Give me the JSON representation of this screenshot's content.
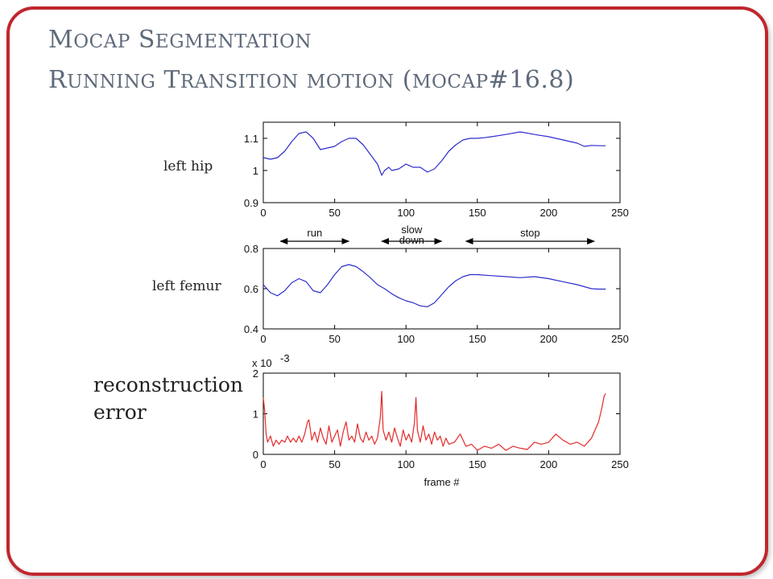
{
  "slide": {
    "title_line1": "Mocap Segmentation",
    "title_line2": "Running Transition motion (mocap#16.8)"
  },
  "labels": {
    "hip": "left hip",
    "femur": "left femur",
    "reconstruction": "reconstruction error"
  },
  "segments": [
    {
      "label": "run",
      "from": 12,
      "to": 60
    },
    {
      "label": "slow\ndown",
      "from": 83,
      "to": 125
    },
    {
      "label": "stop",
      "from": 142,
      "to": 232
    }
  ],
  "chart_data": [
    {
      "type": "line",
      "name": "left hip",
      "color": "#2d2dcc",
      "xlim": [
        0,
        250
      ],
      "ylim": [
        0.9,
        1.15
      ],
      "xticks": [
        0,
        50,
        100,
        150,
        200,
        250
      ],
      "yticks": [
        0.9,
        1,
        1.1
      ],
      "ytick_labels": [
        "0.9",
        "1",
        "1.1"
      ],
      "x": [
        0,
        5,
        10,
        15,
        20,
        25,
        30,
        35,
        40,
        45,
        50,
        55,
        60,
        65,
        70,
        75,
        80,
        83,
        85,
        88,
        90,
        95,
        100,
        105,
        110,
        115,
        120,
        125,
        130,
        135,
        140,
        145,
        150,
        155,
        160,
        170,
        180,
        190,
        200,
        210,
        220,
        225,
        230,
        235,
        240
      ],
      "values": [
        1.04,
        1.035,
        1.04,
        1.06,
        1.09,
        1.115,
        1.12,
        1.1,
        1.065,
        1.07,
        1.075,
        1.09,
        1.1,
        1.1,
        1.08,
        1.05,
        1.02,
        0.985,
        1.0,
        1.01,
        1.0,
        1.005,
        1.02,
        1.01,
        1.01,
        0.995,
        1.005,
        1.03,
        1.06,
        1.08,
        1.095,
        1.1,
        1.1,
        1.102,
        1.105,
        1.112,
        1.12,
        1.112,
        1.105,
        1.095,
        1.085,
        1.075,
        1.078,
        1.077,
        1.077
      ]
    },
    {
      "type": "line",
      "name": "left femur",
      "color": "#2d2dcc",
      "xlim": [
        0,
        250
      ],
      "ylim": [
        0.4,
        0.8
      ],
      "xticks": [
        0,
        50,
        100,
        150,
        200,
        250
      ],
      "yticks": [
        0.4,
        0.6,
        0.8
      ],
      "ytick_labels": [
        "0.4",
        "0.6",
        "0.8"
      ],
      "x": [
        0,
        5,
        10,
        15,
        20,
        25,
        30,
        35,
        40,
        45,
        50,
        55,
        60,
        65,
        70,
        75,
        80,
        85,
        90,
        95,
        100,
        105,
        110,
        115,
        120,
        125,
        130,
        135,
        140,
        145,
        150,
        160,
        170,
        180,
        190,
        200,
        210,
        220,
        225,
        230,
        235,
        240
      ],
      "values": [
        0.62,
        0.58,
        0.565,
        0.59,
        0.63,
        0.65,
        0.635,
        0.59,
        0.58,
        0.62,
        0.67,
        0.71,
        0.72,
        0.71,
        0.685,
        0.655,
        0.62,
        0.6,
        0.575,
        0.555,
        0.54,
        0.53,
        0.515,
        0.51,
        0.53,
        0.57,
        0.61,
        0.64,
        0.66,
        0.67,
        0.67,
        0.665,
        0.66,
        0.655,
        0.66,
        0.65,
        0.635,
        0.62,
        0.61,
        0.6,
        0.598,
        0.598
      ]
    },
    {
      "type": "line",
      "name": "reconstruction error",
      "color": "#e52a2a",
      "xlim": [
        0,
        250
      ],
      "ylim": [
        0,
        2
      ],
      "scale_label": "x 10",
      "scale_exp": "-3",
      "xlabel": "frame #",
      "xticks": [
        0,
        50,
        100,
        150,
        200,
        250
      ],
      "yticks": [
        0,
        1,
        2
      ],
      "ytick_labels": [
        "0",
        "1",
        "2"
      ],
      "x": [
        0,
        1,
        2,
        3,
        5,
        7,
        9,
        11,
        13,
        15,
        17,
        19,
        21,
        23,
        25,
        27,
        29,
        31,
        32,
        34,
        36,
        38,
        40,
        42,
        44,
        46,
        48,
        50,
        52,
        54,
        56,
        58,
        60,
        62,
        64,
        66,
        68,
        70,
        72,
        74,
        76,
        78,
        80,
        82,
        83,
        84,
        86,
        88,
        90,
        92,
        94,
        96,
        98,
        100,
        102,
        104,
        106,
        107,
        108,
        110,
        112,
        114,
        116,
        118,
        120,
        122,
        124,
        126,
        128,
        130,
        134,
        138,
        142,
        146,
        150,
        155,
        160,
        165,
        170,
        175,
        180,
        185,
        190,
        195,
        200,
        205,
        210,
        215,
        220,
        225,
        230,
        235,
        237,
        239,
        240
      ],
      "values": [
        1.4,
        1.05,
        0.5,
        0.3,
        0.45,
        0.2,
        0.35,
        0.25,
        0.35,
        0.3,
        0.45,
        0.3,
        0.4,
        0.3,
        0.45,
        0.3,
        0.5,
        0.8,
        0.85,
        0.35,
        0.55,
        0.3,
        0.65,
        0.4,
        0.25,
        0.7,
        0.3,
        0.45,
        0.6,
        0.2,
        0.55,
        0.8,
        0.35,
        0.45,
        0.3,
        0.75,
        0.4,
        0.3,
        0.55,
        0.35,
        0.45,
        0.25,
        0.4,
        0.9,
        1.55,
        0.6,
        0.35,
        0.55,
        0.3,
        0.65,
        0.4,
        0.2,
        0.6,
        0.35,
        0.5,
        0.3,
        0.8,
        1.4,
        0.6,
        0.3,
        0.7,
        0.35,
        0.5,
        0.25,
        0.55,
        0.35,
        0.45,
        0.2,
        0.4,
        0.25,
        0.3,
        0.5,
        0.2,
        0.25,
        0.1,
        0.2,
        0.15,
        0.25,
        0.1,
        0.2,
        0.15,
        0.12,
        0.3,
        0.25,
        0.3,
        0.5,
        0.35,
        0.25,
        0.3,
        0.2,
        0.4,
        0.8,
        1.1,
        1.45,
        1.5
      ]
    }
  ]
}
